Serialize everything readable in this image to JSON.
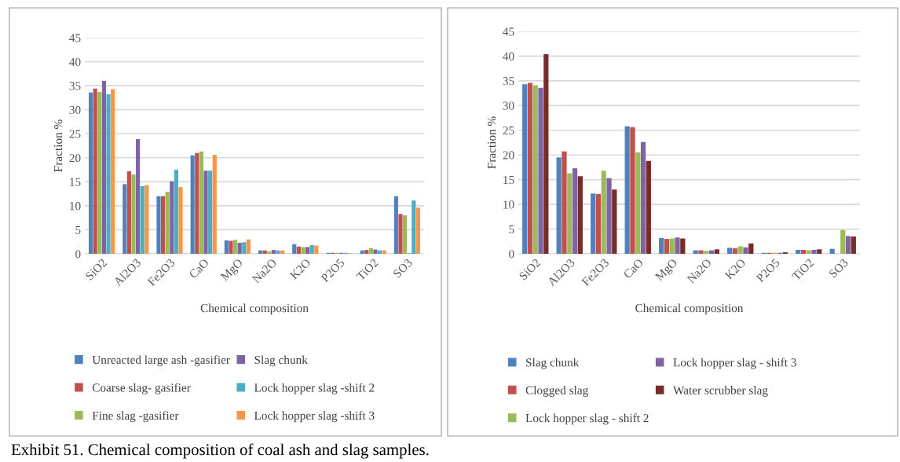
{
  "chart_data": [
    {
      "type": "bar",
      "xlabel": "Chemical composition",
      "ylabel": "Fraction %",
      "categories": [
        "SiO2",
        "Al2O3",
        "Fe2O3",
        "CaO",
        "MgO",
        "Na2O",
        "K2O",
        "P2O5",
        "TiO2",
        "SO3"
      ],
      "series": [
        {
          "name": "Unreacted large ash -gasifier",
          "color": "#4f81bd",
          "values": [
            33.6,
            14.5,
            12,
            20.5,
            2.8,
            0.7,
            2.0,
            0.2,
            0.7,
            12
          ]
        },
        {
          "name": "Coarse slag- gasifier",
          "color": "#c0504d",
          "values": [
            34.4,
            17.2,
            12,
            21,
            2.7,
            0.7,
            1.5,
            0.2,
            0.8,
            8.3
          ]
        },
        {
          "name": "Fine slag -gasifier",
          "color": "#9bbb59",
          "values": [
            33.7,
            16.5,
            12.9,
            21.3,
            2.9,
            0.5,
            1.4,
            0.2,
            1.2,
            8.0
          ]
        },
        {
          "name": "Slag chunk",
          "color": "#8064a2",
          "values": [
            36,
            23.9,
            15.1,
            17.3,
            2.3,
            0.8,
            1.4,
            0.2,
            0.9,
            0.1
          ]
        },
        {
          "name": "Lock hopper slag -shift 2",
          "color": "#4bacc6",
          "values": [
            33.2,
            14.1,
            17.5,
            17.3,
            2.4,
            0.7,
            1.8,
            0.2,
            0.7,
            11.1
          ]
        },
        {
          "name": "Lock hopper slag -shift 3",
          "color": "#f79646",
          "values": [
            34.3,
            14.3,
            13.9,
            20.6,
            3.0,
            0.7,
            1.7,
            0.1,
            0.7,
            9.6
          ]
        }
      ],
      "ylim": [
        0,
        45
      ],
      "yticks": [
        0,
        5,
        10,
        15,
        20,
        25,
        30,
        35,
        40,
        45
      ],
      "grid": "y",
      "legend": "bottom",
      "annotations": [
        "Exhibit 51. Chemical composition of coal ash and slag samples."
      ]
    },
    {
      "type": "bar",
      "xlabel": "Chemical composition",
      "ylabel": "Fraction %",
      "categories": [
        "SiO2",
        "Al2O3",
        "Fe2O3",
        "CaO",
        "MgO",
        "Na2O",
        "K2O",
        "P2O5",
        "TiO2",
        "SO3"
      ],
      "series": [
        {
          "name": "Slag chunk",
          "color": "#4f81bd",
          "values": [
            34.3,
            19.5,
            12.2,
            25.8,
            3.2,
            0.7,
            1.2,
            0.2,
            0.8,
            1.0
          ]
        },
        {
          "name": "Clogged slag",
          "color": "#c0504d",
          "values": [
            34.6,
            20.7,
            12.1,
            25.6,
            3.0,
            0.7,
            1.1,
            0.2,
            0.8,
            0
          ]
        },
        {
          "name": "Lock hopper slag - shift 2",
          "color": "#9bbb59",
          "values": [
            34.1,
            16.3,
            16.8,
            20.5,
            3.1,
            0.6,
            1.5,
            0.2,
            0.7,
            4.8
          ]
        },
        {
          "name": "Lock hopper slag - shift 3",
          "color": "#8064a2",
          "values": [
            33.6,
            17.3,
            15.3,
            22.6,
            3.3,
            0.7,
            1.3,
            0.2,
            0.8,
            3.6
          ]
        },
        {
          "name": "Water scrubber slag",
          "color": "#772c2a",
          "values": [
            40.4,
            15.7,
            13.0,
            18.8,
            3.1,
            0.9,
            2.1,
            0.3,
            0.9,
            3.5
          ]
        }
      ],
      "ylim": [
        0,
        45
      ],
      "yticks": [
        0,
        5,
        10,
        15,
        20,
        25,
        30,
        35,
        40,
        45
      ],
      "grid": "y",
      "legend": "bottom"
    }
  ]
}
